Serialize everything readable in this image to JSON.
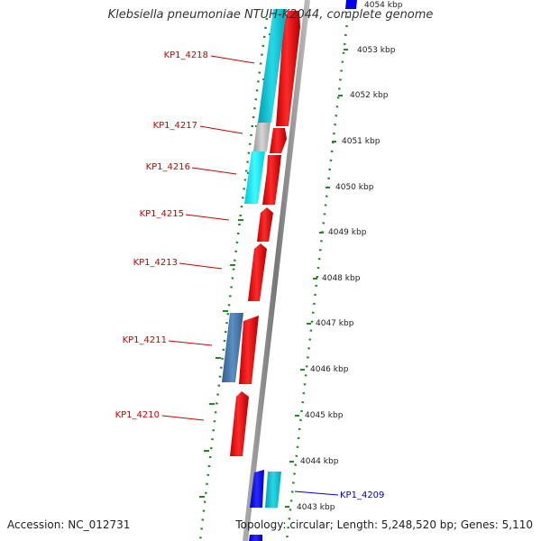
{
  "title": "Klebsiella pneumoniae NTUH-K2044, complete genome",
  "footer": {
    "accession": "Accession: NC_012731",
    "summary": "Topology: circular; Length: 5,248,520 bp; Genes: 5,110"
  },
  "scale_labels": [
    "4054 kbp",
    "4053 kbp",
    "4052 kbp",
    "4051 kbp",
    "4050 kbp",
    "4049 kbp",
    "4048 kbp",
    "4047 kbp",
    "4046 kbp",
    "4045 kbp",
    "4044 kbp",
    "4043 kbp"
  ],
  "gene_labels": [
    {
      "name": "KP1_4218",
      "color": "#cc0000"
    },
    {
      "name": "KP1_4217",
      "color": "#cc0000"
    },
    {
      "name": "KP1_4216",
      "color": "#cc0000"
    },
    {
      "name": "KP1_4215",
      "color": "#cc0000"
    },
    {
      "name": "KP1_4213",
      "color": "#cc0000"
    },
    {
      "name": "KP1_4211",
      "color": "#cc0000"
    },
    {
      "name": "KP1_4210",
      "color": "#cc0000"
    },
    {
      "name": "KP1_4209",
      "color": "#0000cc"
    }
  ],
  "feature_colors": {
    "cds": "#ff0000",
    "gene_cyan": "#00ccdd",
    "gene_light_cyan": "#00f0ff",
    "gene_gray": "#bbbbbb",
    "gene_steel": "#4477aa",
    "gene_blue": "#0000ee",
    "backbone": "#888888",
    "dotted_ring": "#228822"
  }
}
